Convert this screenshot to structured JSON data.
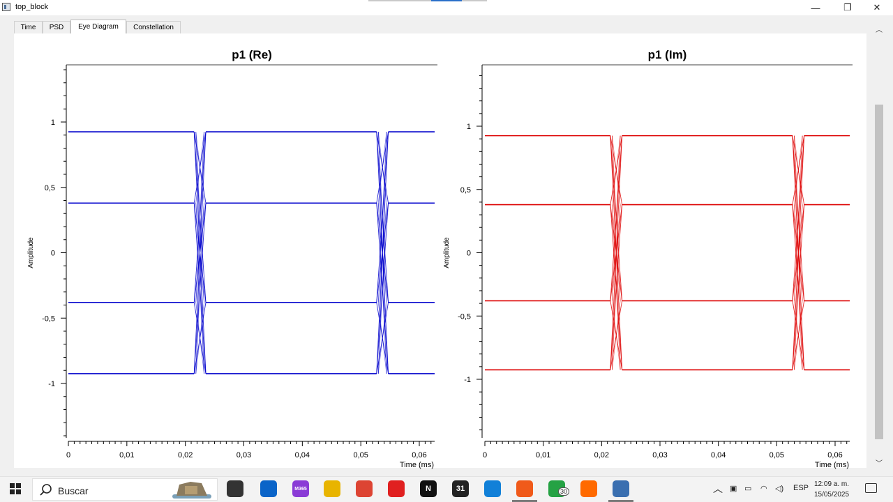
{
  "window": {
    "title": "top_block",
    "minimize": "—",
    "maximize": "❐",
    "close": "✕"
  },
  "tabs": [
    {
      "label": "Time",
      "active": false
    },
    {
      "label": "PSD",
      "active": false
    },
    {
      "label": "Eye Diagram",
      "active": true
    },
    {
      "label": "Constellation",
      "active": false
    }
  ],
  "chart_data": [
    {
      "type": "line",
      "title": "p1 (Re)",
      "xlabel": "Time (ms)",
      "ylabel": "Amplitude",
      "xlim": [
        0,
        0.0625
      ],
      "ylim": [
        -1.4,
        1.43
      ],
      "xticks": [
        "0",
        "0,01",
        "0,02",
        "0,03",
        "0,04",
        "0,05",
        "0,06"
      ],
      "yticks": [
        "1",
        "0,5",
        "0",
        "-0,5",
        "-1"
      ],
      "levels": [
        0.925,
        0.38,
        -0.38,
        -0.925
      ],
      "transitions": [
        {
          "start": 0.0215,
          "end": 0.0235
        },
        {
          "start": 0.0527,
          "end": 0.0547
        }
      ],
      "color": "#0000cc"
    },
    {
      "type": "line",
      "title": "p1 (Im)",
      "xlabel": "Time (ms)",
      "ylabel": "Amplitude",
      "xlim": [
        0,
        0.0625
      ],
      "ylim": [
        -1.4,
        1.43
      ],
      "xticks": [
        "0",
        "0,01",
        "0,02",
        "0,03",
        "0,04",
        "0,05",
        "0,06"
      ],
      "yticks": [
        "1",
        "0,5",
        "0",
        "-0,5",
        "-1"
      ],
      "levels": [
        0.925,
        0.38,
        -0.38,
        -0.925
      ],
      "transitions": [
        {
          "start": 0.0215,
          "end": 0.0235
        },
        {
          "start": 0.0527,
          "end": 0.0547
        }
      ],
      "color": "#dd0000"
    }
  ],
  "taskbar": {
    "search_placeholder": "Buscar",
    "apps": [
      {
        "name": "task-view-icon",
        "color": "#333333"
      },
      {
        "name": "outlook-icon",
        "color": "#0a64c8"
      },
      {
        "name": "microsoft-365-icon",
        "color": "#8a3bd6",
        "label": "M365"
      },
      {
        "name": "file-explorer-icon",
        "color": "#e8b400"
      },
      {
        "name": "chrome-icon",
        "color": "#dd4433"
      },
      {
        "name": "opera-icon",
        "color": "#e02020"
      },
      {
        "name": "notion-icon",
        "color": "#111111",
        "label": "N"
      },
      {
        "name": "calendar-icon",
        "color": "#222222",
        "label": "31"
      },
      {
        "name": "edge-icon",
        "color": "#1180d8"
      },
      {
        "name": "brave-icon",
        "color": "#f05a1a"
      },
      {
        "name": "whatsapp-icon",
        "color": "#25a244",
        "badge": "30"
      },
      {
        "name": "gnuradio-icon",
        "color": "#ff6a00"
      },
      {
        "name": "python-app-icon",
        "color": "#3a6fb0"
      }
    ],
    "language": "ESP",
    "time": "12:09 a. m.",
    "date": "15/05/2025"
  }
}
